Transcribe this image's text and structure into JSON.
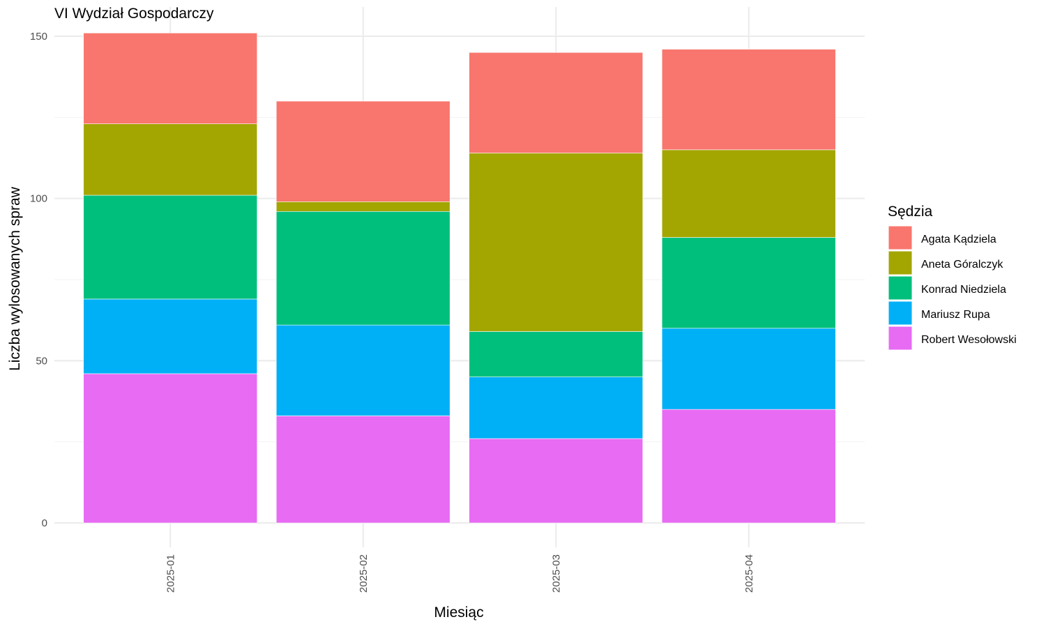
{
  "chart_data": {
    "type": "bar",
    "stacked": true,
    "title": "VI Wydział Gospodarczy",
    "xlabel": "Miesiąc",
    "ylabel": "Liczba wylosowanych spraw",
    "categories": [
      "2025-01",
      "2025-02",
      "2025-03",
      "2025-04"
    ],
    "ylim": [
      0,
      155
    ],
    "yticks": [
      0,
      50,
      100,
      150
    ],
    "grid": true,
    "x_tick_rotation": "vertical",
    "legend": {
      "title": "Sędzia",
      "position": "right"
    },
    "series": [
      {
        "name": "Robert Wesołowski",
        "color": "#E76BF3",
        "values": [
          46,
          33,
          26,
          35
        ]
      },
      {
        "name": "Mariusz Rupa",
        "color": "#00B0F6",
        "values": [
          23,
          28,
          19,
          25
        ]
      },
      {
        "name": "Konrad Niedziela",
        "color": "#00BF7D",
        "values": [
          32,
          35,
          14,
          28
        ]
      },
      {
        "name": "Aneta Góralczyk",
        "color": "#A3A500",
        "values": [
          22,
          3,
          55,
          27
        ]
      },
      {
        "name": "Agata Kądziela",
        "color": "#F8766D",
        "values": [
          28,
          31,
          31,
          31
        ]
      }
    ],
    "legend_order": [
      "Agata Kądziela",
      "Aneta Góralczyk",
      "Konrad Niedziela",
      "Mariusz Rupa",
      "Robert Wesołowski"
    ]
  }
}
